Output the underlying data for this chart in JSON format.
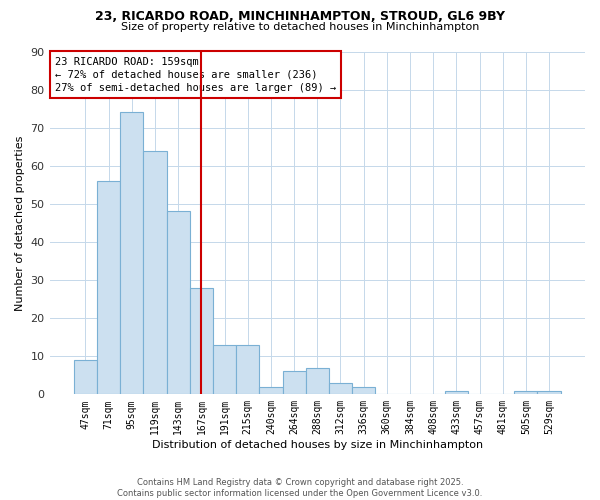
{
  "title": "23, RICARDO ROAD, MINCHINHAMPTON, STROUD, GL6 9BY",
  "subtitle": "Size of property relative to detached houses in Minchinhampton",
  "xlabel": "Distribution of detached houses by size in Minchinhampton",
  "ylabel": "Number of detached properties",
  "categories": [
    "47sqm",
    "71sqm",
    "95sqm",
    "119sqm",
    "143sqm",
    "167sqm",
    "191sqm",
    "215sqm",
    "240sqm",
    "264sqm",
    "288sqm",
    "312sqm",
    "336sqm",
    "360sqm",
    "384sqm",
    "408sqm",
    "433sqm",
    "457sqm",
    "481sqm",
    "505sqm",
    "529sqm"
  ],
  "values": [
    9,
    56,
    74,
    64,
    48,
    28,
    13,
    13,
    2,
    6,
    7,
    3,
    2,
    0,
    0,
    0,
    1,
    0,
    0,
    1,
    1
  ],
  "bar_color": "#cce0f0",
  "bar_edge_color": "#7ab0d4",
  "ylim": [
    0,
    90
  ],
  "yticks": [
    0,
    10,
    20,
    30,
    40,
    50,
    60,
    70,
    80,
    90
  ],
  "property_line_x": 5.0,
  "property_line_color": "#cc0000",
  "annotation_line1": "23 RICARDO ROAD: 159sqm",
  "annotation_line2": "← 72% of detached houses are smaller (236)",
  "annotation_line3": "27% of semi-detached houses are larger (89) →",
  "annotation_box_color": "#cc0000",
  "footer_line1": "Contains HM Land Registry data © Crown copyright and database right 2025.",
  "footer_line2": "Contains public sector information licensed under the Open Government Licence v3.0.",
  "background_color": "#ffffff",
  "grid_color": "#c5d8ea"
}
